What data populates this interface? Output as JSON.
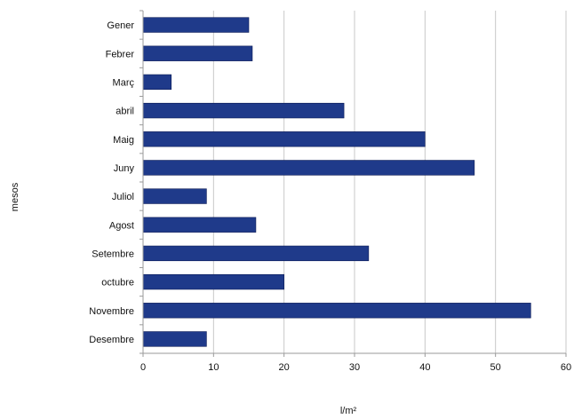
{
  "chart_data": {
    "type": "bar",
    "orientation": "horizontal",
    "categories": [
      "Gener",
      "Febrer",
      "Març",
      "abril",
      "Maig",
      "Juny",
      "Juliol",
      "Agost",
      "Setembre",
      "octubre",
      "Novembre",
      "Desembre"
    ],
    "values": [
      15,
      15.5,
      4,
      28.5,
      40,
      47,
      9,
      16,
      32,
      20,
      55,
      9
    ],
    "xlabel": "l/m²",
    "ylabel": "mesos",
    "xlim": [
      0,
      60
    ],
    "xticks": [
      0,
      10,
      20,
      30,
      40,
      50,
      60
    ],
    "grid": true,
    "legend": "none",
    "bar_color": "#1f3a8a",
    "grid_color": "#c8c8c8"
  }
}
